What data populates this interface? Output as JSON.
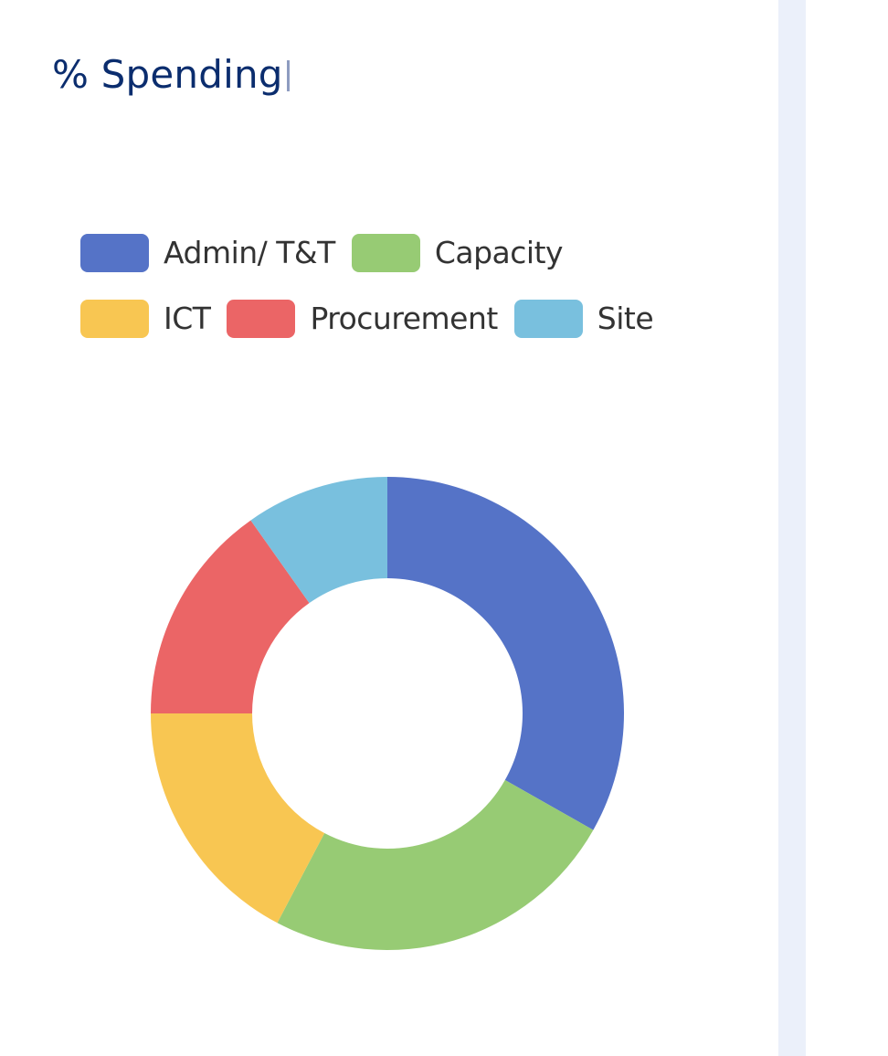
{
  "card": {
    "title": "% Spending"
  },
  "legend": {
    "rows": [
      [
        {
          "label": "Admin/ T&T",
          "color": "#5573c7"
        },
        {
          "label": "Capacity",
          "color": "#97cb74"
        }
      ],
      [
        {
          "label": "ICT",
          "color": "#f8c652"
        },
        {
          "label": "Procurement",
          "color": "#eb6566"
        },
        {
          "label": "Site",
          "color": "#79c0de"
        }
      ]
    ]
  },
  "chart_data": {
    "type": "pie",
    "subtype": "donut",
    "title": "% Spending",
    "categories": [
      "Admin/ T&T",
      "Capacity",
      "ICT",
      "Procurement",
      "Site"
    ],
    "values": [
      33.2,
      24.5,
      17.3,
      15.2,
      9.8
    ],
    "unit": "%",
    "colors": [
      "#5573c7",
      "#97cb74",
      "#f8c652",
      "#eb6566",
      "#79c0de"
    ],
    "start_angle_deg": 0,
    "direction": "clockwise",
    "inner_radius_ratio": 0.57,
    "legend_position": "top",
    "data_labels": false
  }
}
